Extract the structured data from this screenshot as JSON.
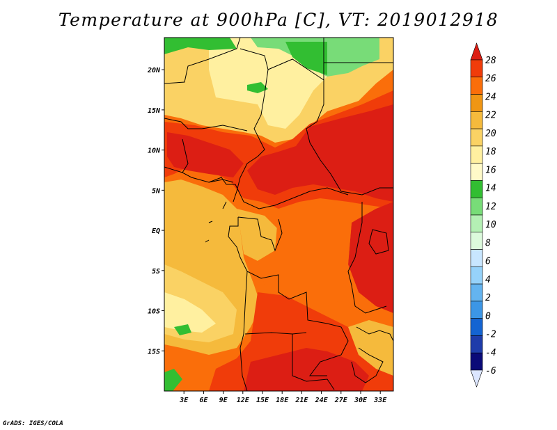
{
  "title": "Temperature at 900hPa [C], VT: 2019012918",
  "credit": "GrADS: IGES/COLA",
  "map": {
    "lon_range": [
      0,
      35
    ],
    "lat_range": [
      -20,
      24
    ],
    "lat_ticks": [
      {
        "value": 20,
        "label": "20N"
      },
      {
        "value": 15,
        "label": "15N"
      },
      {
        "value": 10,
        "label": "10N"
      },
      {
        "value": 5,
        "label": "5N"
      },
      {
        "value": 0,
        "label": "EQ"
      },
      {
        "value": -5,
        "label": "5S"
      },
      {
        "value": -10,
        "label": "10S"
      },
      {
        "value": -15,
        "label": "15S"
      }
    ],
    "lon_ticks": [
      {
        "value": 3,
        "label": "3E"
      },
      {
        "value": 6,
        "label": "6E"
      },
      {
        "value": 9,
        "label": "9E"
      },
      {
        "value": 12,
        "label": "12E"
      },
      {
        "value": 15,
        "label": "15E"
      },
      {
        "value": 18,
        "label": "18E"
      },
      {
        "value": 21,
        "label": "21E"
      },
      {
        "value": 24,
        "label": "24E"
      },
      {
        "value": 27,
        "label": "27E"
      },
      {
        "value": 30,
        "label": "30E"
      },
      {
        "value": 33,
        "label": "33E"
      }
    ]
  },
  "colorbar": {
    "levels": [
      "28",
      "26",
      "24",
      "22",
      "20",
      "18",
      "16",
      "14",
      "12",
      "10",
      "8",
      "6",
      "4",
      "2",
      "0",
      "-2",
      "-4",
      "-6"
    ],
    "colors": [
      "#dc1e14",
      "#f03c0a",
      "#fa6e0a",
      "#f09614",
      "#f5ba3c",
      "#fad264",
      "#fff0a0",
      "#fffac8",
      "#32be32",
      "#78dc78",
      "#b4f0b4",
      "#dcfadc",
      "#c8e6ff",
      "#96d2fa",
      "#64b4f0",
      "#3c96e6",
      "#1464d2",
      "#1e3caa",
      "#0a0a78",
      "#dce6ff"
    ]
  }
}
